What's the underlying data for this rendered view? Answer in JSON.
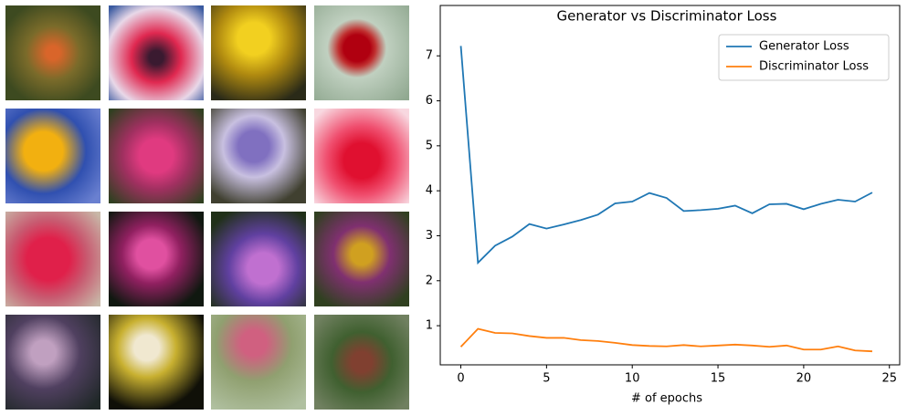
{
  "chart_data": {
    "type": "line",
    "title": "Generator vs Discriminator Loss",
    "x_label": "# of epochs",
    "x": [
      0,
      1,
      2,
      3,
      4,
      5,
      6,
      7,
      8,
      9,
      10,
      11,
      12,
      13,
      14,
      15,
      16,
      17,
      18,
      19,
      20,
      21,
      22,
      23,
      24
    ],
    "series": [
      {
        "name": "Generator Loss",
        "color": "#1f77b4",
        "values": [
          7.22,
          2.4,
          2.78,
          2.98,
          3.26,
          3.16,
          3.25,
          3.35,
          3.47,
          3.72,
          3.76,
          3.95,
          3.84,
          3.55,
          3.57,
          3.6,
          3.67,
          3.5,
          3.7,
          3.71,
          3.59,
          3.71,
          3.8,
          3.76,
          3.96
        ]
      },
      {
        "name": "Discriminator Loss",
        "color": "#ff7f0e",
        "values": [
          0.53,
          0.93,
          0.84,
          0.83,
          0.77,
          0.73,
          0.73,
          0.68,
          0.66,
          0.62,
          0.57,
          0.55,
          0.54,
          0.57,
          0.54,
          0.56,
          0.58,
          0.56,
          0.53,
          0.56,
          0.47,
          0.47,
          0.54,
          0.45,
          0.43
        ]
      }
    ],
    "xlim": [
      -1.2,
      25.6
    ],
    "ylim": [
      0.13,
      8.12
    ],
    "xticks": [
      0,
      5,
      10,
      15,
      20,
      25
    ],
    "yticks": [
      1,
      2,
      3,
      4,
      5,
      6,
      7
    ],
    "grid": false,
    "legend": "upper right"
  }
}
